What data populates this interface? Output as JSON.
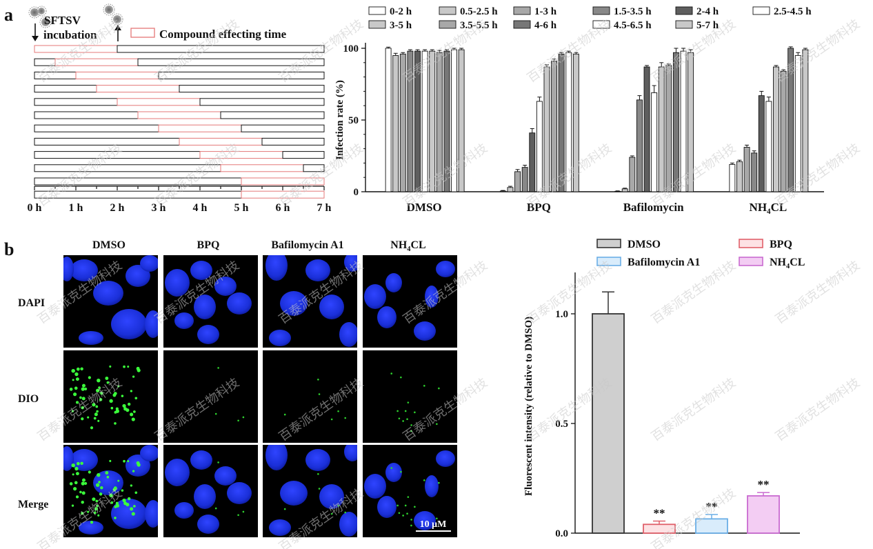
{
  "panel_a": {
    "label": "a",
    "virus_name": "SFTSV",
    "incubation_label": "incubation",
    "legend_effect_label": "Compound effecting time",
    "timeline": {
      "hours": [
        0,
        7
      ],
      "hour_labels": [
        "0 h",
        "1 h",
        "2 h",
        "3 h",
        "4 h",
        "5 h",
        "6 h",
        "7 h"
      ],
      "windows": [
        {
          "label": "0-2 h",
          "start": 0,
          "end": 2
        },
        {
          "label": "0.5-2.5 h",
          "start": 0.5,
          "end": 2.5
        },
        {
          "label": "1-3 h",
          "start": 1,
          "end": 3
        },
        {
          "label": "1.5-3.5 h",
          "start": 1.5,
          "end": 3.5
        },
        {
          "label": "2-4 h",
          "start": 2,
          "end": 4
        },
        {
          "label": "2.5-4.5 h",
          "start": 2.5,
          "end": 4.5
        },
        {
          "label": "3-5 h",
          "start": 3,
          "end": 5
        },
        {
          "label": "3.5-5.5 h",
          "start": 3.5,
          "end": 5.5
        },
        {
          "label": "4-6 h",
          "start": 4,
          "end": 6
        },
        {
          "label": "4.5-6.5 h",
          "start": 4.5,
          "end": 6.5
        },
        {
          "label": "5-7 h",
          "start": 5,
          "end": 7
        }
      ],
      "extra_row": {
        "start": 0,
        "end": 5
      }
    }
  },
  "chart_data": [
    {
      "type": "bar",
      "title": "",
      "ylabel": "Infection rate (%)",
      "xlabel": "",
      "ylim": [
        0,
        100
      ],
      "yticks": [
        0,
        50,
        100
      ],
      "categories": [
        "DMSO",
        "BPQ",
        "Bafilomycin",
        "NH4CL"
      ],
      "category_display": [
        "DMSO",
        "BPQ",
        "Bafilomycin",
        "NH₄CL"
      ],
      "series": [
        {
          "name": "0-2 h",
          "color": "#ffffff",
          "values": [
            100,
            0.5,
            0.3,
            19
          ],
          "errors": [
            0.8,
            0.4,
            0.3,
            1
          ]
        },
        {
          "name": "0.5-2.5 h",
          "color": "#c8c8c8",
          "values": [
            95,
            3,
            2,
            21
          ],
          "errors": [
            1.5,
            0.8,
            0.5,
            1
          ]
        },
        {
          "name": "1-3 h",
          "color": "#a8a8a8",
          "values": [
            96,
            14,
            24,
            31
          ],
          "errors": [
            1,
            1.5,
            1,
            1.5
          ]
        },
        {
          "name": "1.5-3.5 h",
          "color": "#888888",
          "values": [
            98,
            17,
            64,
            27
          ],
          "errors": [
            1,
            1.5,
            3,
            1.5
          ]
        },
        {
          "name": "2-4 h",
          "color": "#5e5e5e",
          "values": [
            98,
            41,
            87,
            67
          ],
          "errors": [
            1,
            3,
            1,
            3
          ]
        },
        {
          "name": "2.5-4.5 h",
          "color": "#ffffff",
          "values": [
            98,
            63,
            69,
            63
          ],
          "errors": [
            1,
            3,
            5,
            3
          ]
        },
        {
          "name": "3-5 h",
          "color": "#c8c8c8",
          "values": [
            98,
            87,
            87,
            87
          ],
          "errors": [
            1,
            1.5,
            3,
            1
          ]
        },
        {
          "name": "3.5-5.5 h",
          "color": "#a8a8a8",
          "values": [
            97,
            91,
            88,
            84
          ],
          "errors": [
            1.5,
            1.5,
            1,
            1
          ]
        },
        {
          "name": "4-6 h",
          "color": "#777777",
          "values": [
            98,
            96,
            97,
            100
          ],
          "errors": [
            1,
            1,
            3,
            1
          ]
        },
        {
          "name": "4.5-6.5 h",
          "color": "#ffffff",
          "values": [
            99,
            97,
            98,
            95
          ],
          "errors": [
            1,
            1,
            2,
            2
          ]
        },
        {
          "name": "5-7 h",
          "color": "#c8c8c8",
          "values": [
            99,
            96,
            97,
            99
          ],
          "errors": [
            1,
            1,
            2,
            1
          ]
        }
      ]
    },
    {
      "type": "bar",
      "title": "",
      "ylabel": "Fluorescent intensity (relative to DMSO)",
      "xlabel": "",
      "ylim": [
        0,
        1.0
      ],
      "yticks": [
        0.0,
        0.5,
        1.0
      ],
      "ytick_labels": [
        "0.0",
        "0.5",
        "1.0"
      ],
      "categories": [
        "DMSO",
        "BPQ",
        "Bafilomycin A1",
        "NH4CL"
      ],
      "legend_display": [
        "DMSO",
        "BPQ",
        "Bafilomycin A1",
        "NH₄CL"
      ],
      "values": [
        1.0,
        0.04,
        0.065,
        0.17
      ],
      "errors": [
        0.1,
        0.015,
        0.02,
        0.015
      ],
      "significance": [
        "",
        "**",
        "**",
        "**"
      ],
      "fills": [
        "#cfcfcf",
        "#fde2e4",
        "#d9ecfb",
        "#f3cdf3"
      ],
      "strokes": [
        "#333333",
        "#e0606a",
        "#6aaee6",
        "#c96ad0"
      ]
    }
  ],
  "panel_b": {
    "label": "b",
    "column_headers": [
      "DMSO",
      "BPQ",
      "Bafilomycin A1",
      "NH₄CL"
    ],
    "row_labels": [
      "DAPI",
      "DIO",
      "Merge"
    ],
    "scale_bar_label": "10 μM"
  },
  "watermark_text": "百泰派克生物科技"
}
